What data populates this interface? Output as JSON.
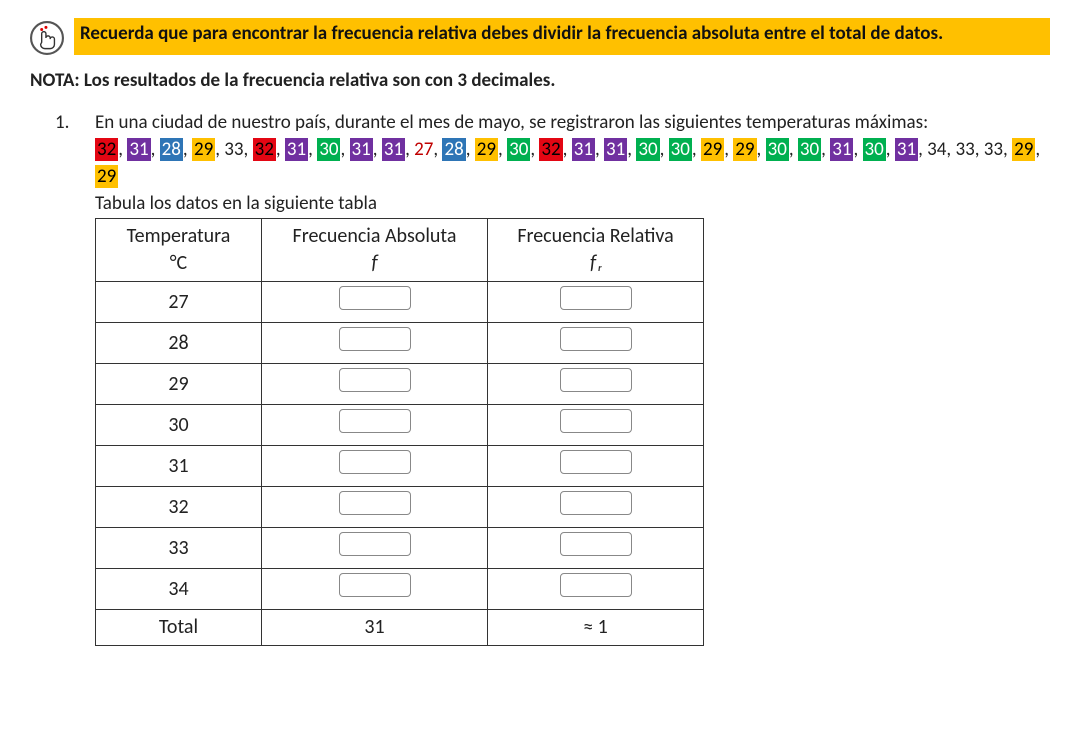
{
  "banner": {
    "text": "Recuerda que para encontrar la frecuencia relativa debes dividir la frecuencia absoluta entre el total de datos."
  },
  "note": "NOTA: Los resultados de la frecuencia relativa son con 3 decimales.",
  "problem": {
    "number": "1.",
    "intro": "En una ciudad de nuestro país, durante el mes de mayo, se registraron las siguientes temperaturas máximas:",
    "tabulate": "Tabula los datos en la siguiente tabla",
    "data": [
      {
        "v": "32",
        "cls": "hl-red"
      },
      {
        "sep": ", "
      },
      {
        "v": "31",
        "cls": "hl-purple"
      },
      {
        "sep": ", "
      },
      {
        "v": "28",
        "cls": "hl-blue"
      },
      {
        "sep": ", "
      },
      {
        "v": "29",
        "cls": "hl-yellow"
      },
      {
        "sep": ", "
      },
      {
        "v": "33",
        "cls": "txt-plain"
      },
      {
        "sep": ", "
      },
      {
        "v": "32",
        "cls": "hl-red"
      },
      {
        "sep": ", "
      },
      {
        "v": "31",
        "cls": "hl-purple"
      },
      {
        "sep": ", "
      },
      {
        "v": "30",
        "cls": "hl-dgreen"
      },
      {
        "sep": ", "
      },
      {
        "v": "31",
        "cls": "hl-purple"
      },
      {
        "sep": ", "
      },
      {
        "v": "31",
        "cls": "hl-purple"
      },
      {
        "sep": ", "
      },
      {
        "v": "27",
        "cls": "txt-red"
      },
      {
        "sep": ", "
      },
      {
        "v": "28",
        "cls": "hl-blue"
      },
      {
        "sep": ", "
      },
      {
        "v": "29",
        "cls": "hl-yellow"
      },
      {
        "sep": ", "
      },
      {
        "v": "30",
        "cls": "hl-dgreen"
      },
      {
        "sep": ", "
      },
      {
        "v": "32",
        "cls": "hl-red"
      },
      {
        "sep": ", "
      },
      {
        "v": "31",
        "cls": "hl-purple"
      },
      {
        "sep": ", "
      },
      {
        "v": "31",
        "cls": "hl-purple"
      },
      {
        "sep": ", "
      },
      {
        "v": "30",
        "cls": "hl-dgreen"
      },
      {
        "sep": ", "
      },
      {
        "v": "30",
        "cls": "hl-dgreen"
      },
      {
        "sep": ", "
      },
      {
        "v": "29",
        "cls": "hl-yellow"
      },
      {
        "sep": ", "
      },
      {
        "v": "29",
        "cls": "hl-yellow"
      },
      {
        "sep": ", "
      },
      {
        "v": "30",
        "cls": "hl-dgreen"
      },
      {
        "sep": ", "
      },
      {
        "v": "30",
        "cls": "hl-dgreen"
      },
      {
        "sep": ", "
      },
      {
        "v": "31",
        "cls": "hl-purple"
      },
      {
        "sep": ", "
      },
      {
        "v": "30",
        "cls": "hl-dgreen"
      },
      {
        "sep": ", "
      },
      {
        "v": "31",
        "cls": "hl-purple"
      },
      {
        "sep": ", "
      },
      {
        "v": "34",
        "cls": "txt-plain"
      },
      {
        "sep": ", "
      },
      {
        "v": "33",
        "cls": "txt-plain"
      },
      {
        "sep": ", "
      },
      {
        "v": "33",
        "cls": "txt-plain"
      },
      {
        "sep": ", "
      },
      {
        "v": "29",
        "cls": "hl-yellow"
      },
      {
        "sep": ", "
      },
      {
        "v": "29",
        "cls": "hl-yellow"
      }
    ]
  },
  "table": {
    "headers": {
      "c0a": "Temperatura",
      "c0b": "°C",
      "c1a": "Frecuencia Absoluta",
      "c1b": "f",
      "c2a": "Frecuencia Relativa",
      "c2b": "fᵣ"
    },
    "rows": [
      "27",
      "28",
      "29",
      "30",
      "31",
      "32",
      "33",
      "34"
    ],
    "total_label": "Total",
    "total_abs": "31",
    "total_rel": "≈ 1"
  }
}
